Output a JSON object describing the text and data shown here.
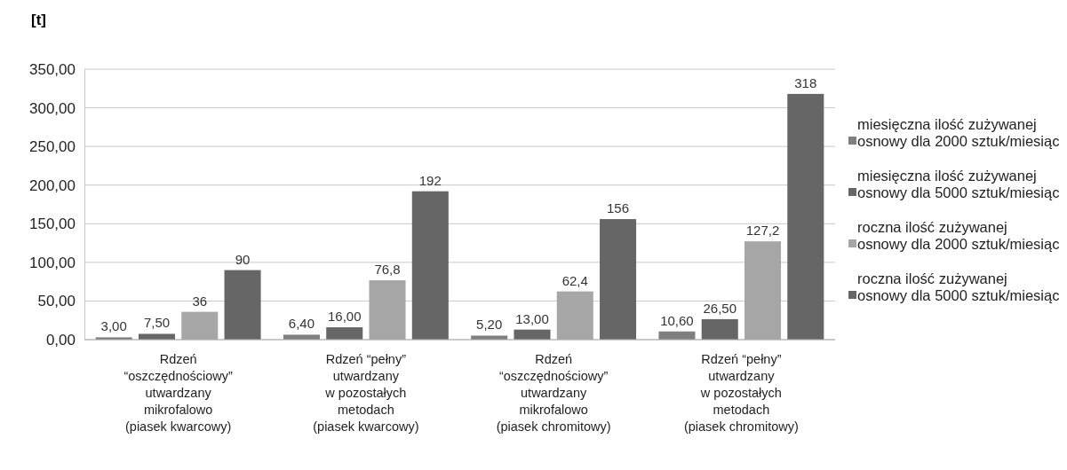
{
  "chart_data": {
    "type": "bar",
    "ylabel": "[t]",
    "categories": [
      "Rdzeń\n“oszczędnościowy”\nutwardzany\nmikrofalowo\n(piasek kwarcowy)",
      "Rdzeń “pełny”\nutwardzany\nw pozostałych\nmetodach\n(piasek kwarcowy)",
      "Rdzeń\n“oszczędnościowy”\nutwardzany\nmikrofalowo\n(piasek chromitowy)",
      "Rdzeń “pełny”\nutwardzany\nw pozostałych\nmetodach\n(piasek chromitowy)"
    ],
    "series": [
      {
        "name": "miesięczna ilość zużywanej\nosnowy dla 2000 sztuk/miesiąc",
        "color": "#7f7f7f",
        "values": [
          3,
          6.4,
          5.2,
          10.6
        ],
        "value_labels": [
          "3,00",
          "6,40",
          "5,20",
          "10,60"
        ]
      },
      {
        "name": "miesięczna ilość zużywanej\nosnowy dla 5000 sztuk/miesiąc",
        "color": "#666666",
        "values": [
          7.5,
          16,
          13,
          26.5
        ],
        "value_labels": [
          "7,50",
          "16,00",
          "13,00",
          "26,50"
        ]
      },
      {
        "name": "roczna ilość zużywanej\nosnowy dla 2000 sztuk/miesiąc",
        "color": "#a6a6a6",
        "values": [
          36,
          76.8,
          62.4,
          127.2
        ],
        "value_labels": [
          "36",
          "76,8",
          "62,4",
          "127,2"
        ]
      },
      {
        "name": "roczna ilość zużywanej\nosnowy dla 5000 sztuk/miesiąc",
        "color": "#666666",
        "values": [
          90,
          192,
          156,
          318
        ],
        "value_labels": [
          "90",
          "192",
          "156",
          "318"
        ]
      }
    ],
    "ylim": [
      0,
      350
    ],
    "yticks": [
      {
        "value": 0,
        "label": "0,00"
      },
      {
        "value": 50,
        "label": "50,00"
      },
      {
        "value": 100,
        "label": "100,00"
      },
      {
        "value": 150,
        "label": "150,00"
      },
      {
        "value": 200,
        "label": "200,00"
      },
      {
        "value": 250,
        "label": "250,00"
      },
      {
        "value": 300,
        "label": "300,00"
      },
      {
        "value": 350,
        "label": "350,00"
      }
    ],
    "grid": "y",
    "legend": "right"
  }
}
